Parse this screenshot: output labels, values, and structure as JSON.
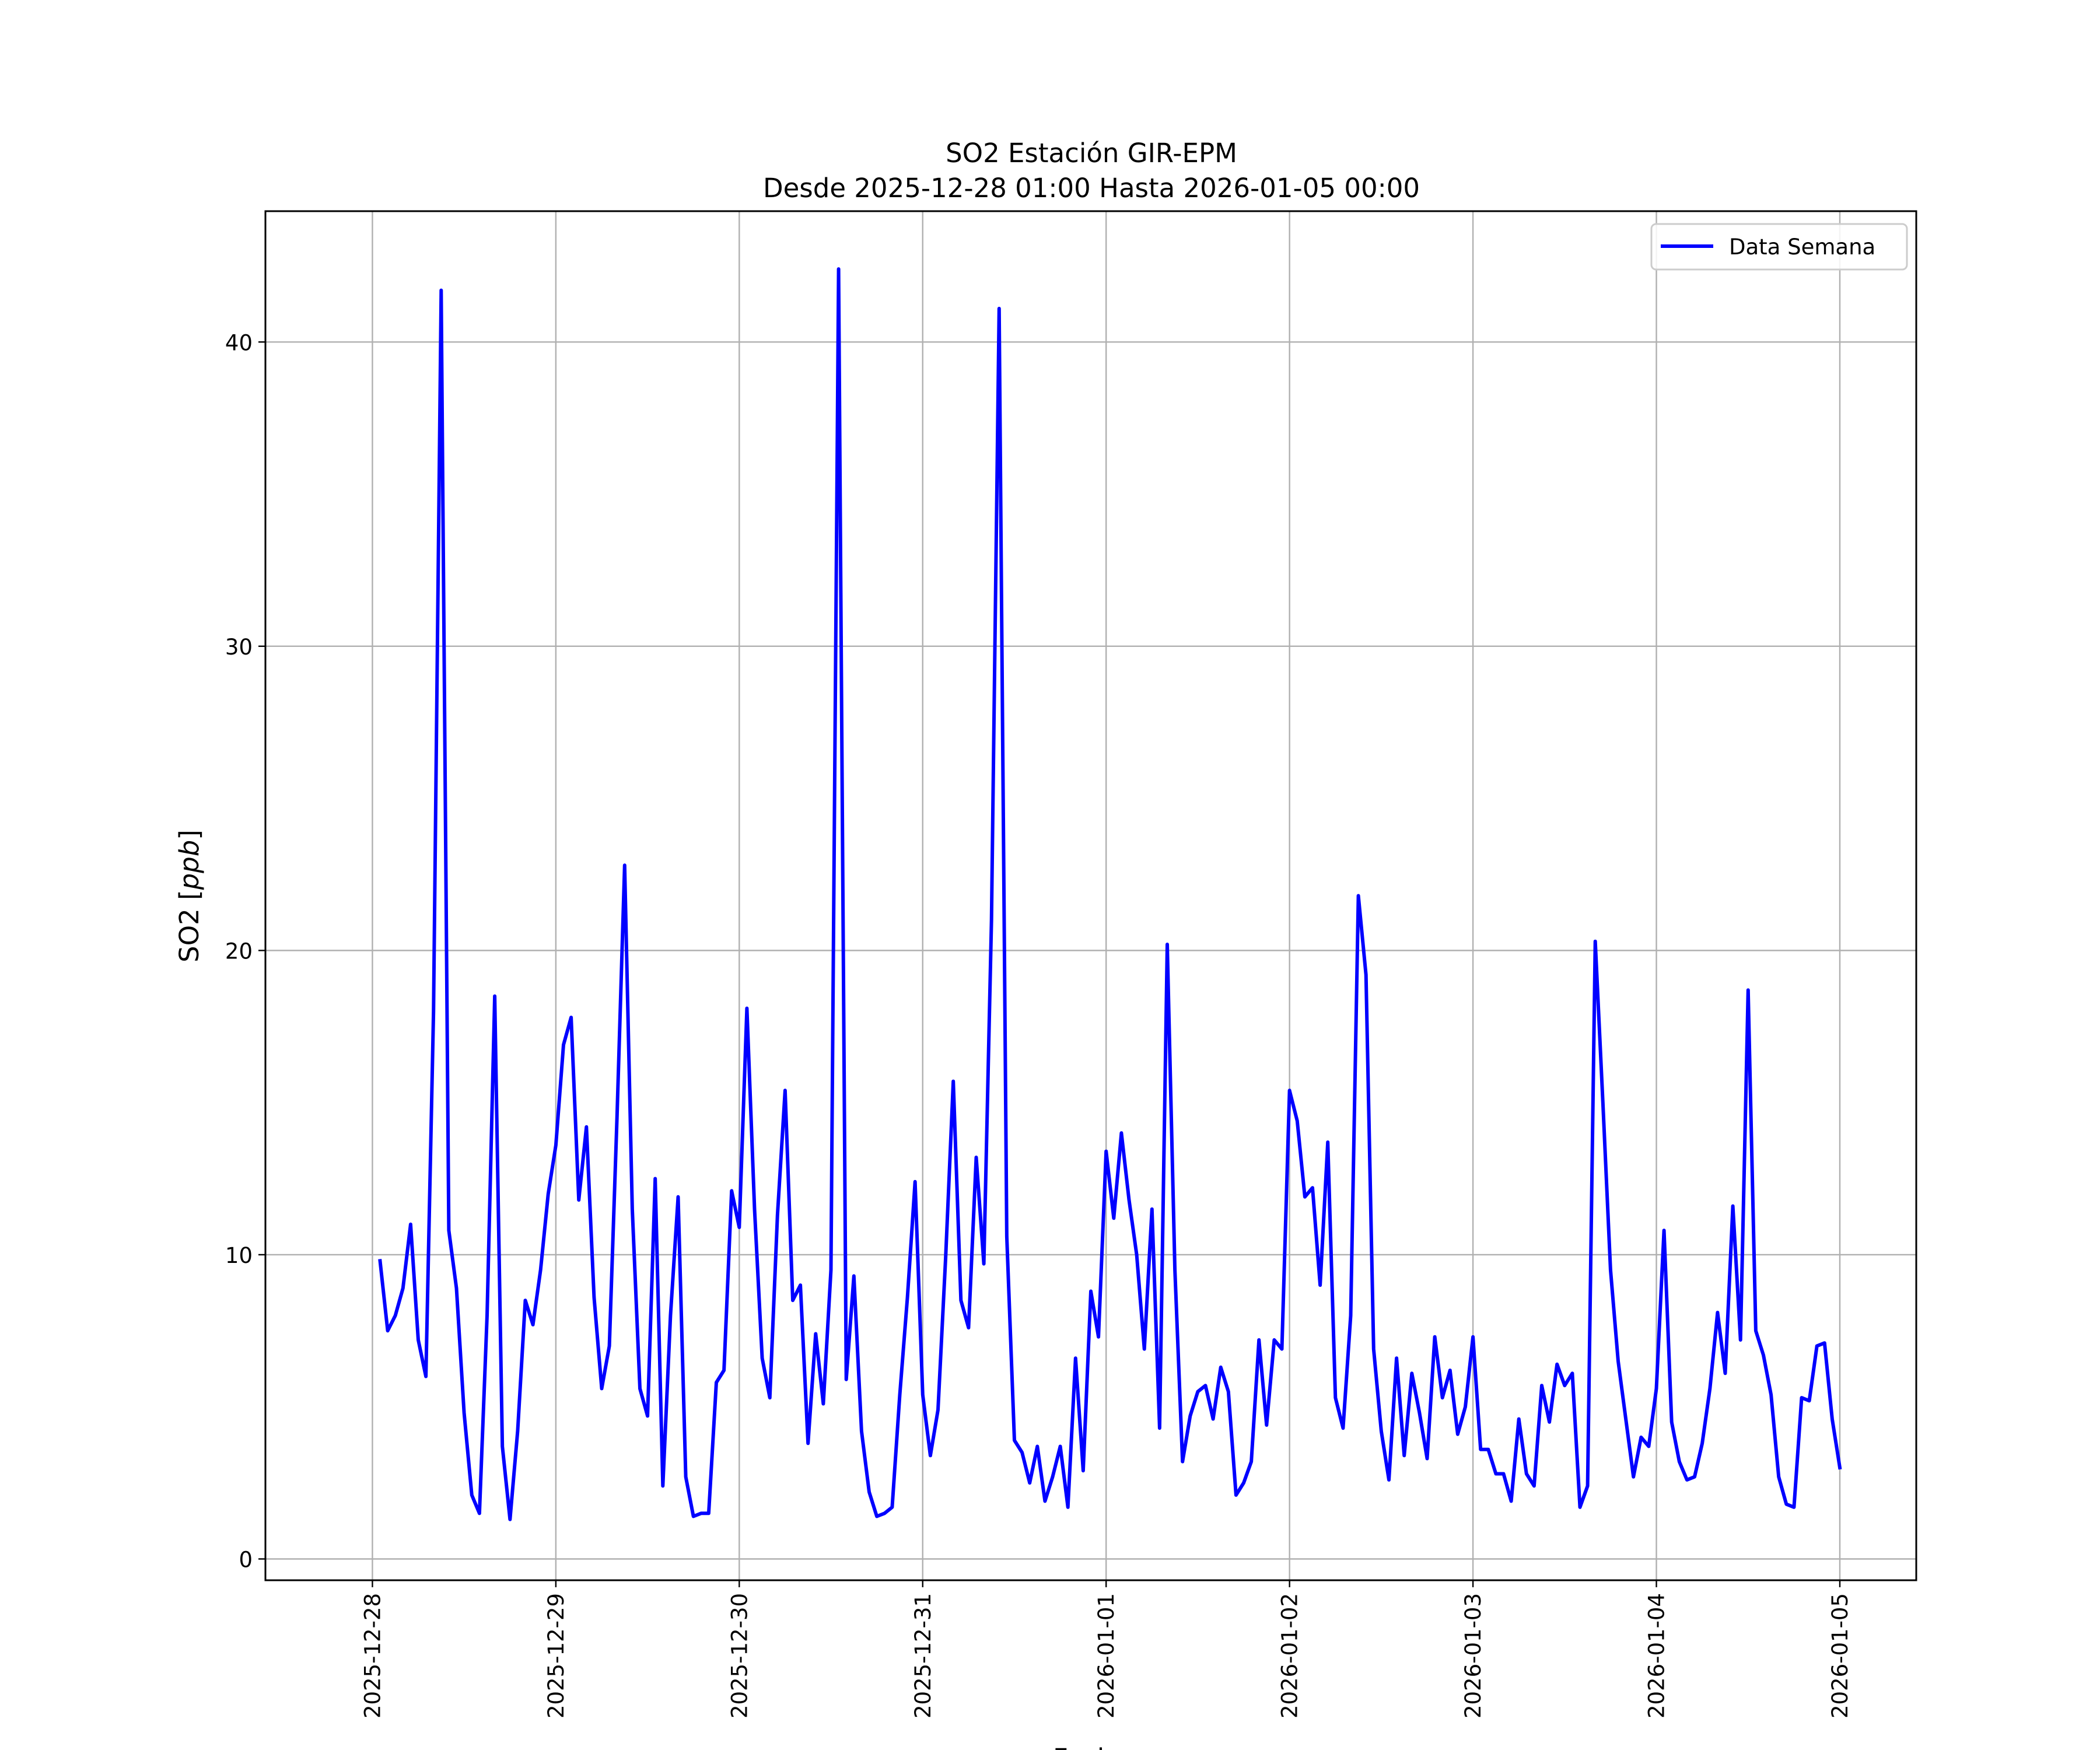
{
  "chart_data": {
    "type": "line",
    "title_line1": "SO2 Estación GIR-EPM",
    "title_line2": "Desde 2025-12-28 01:00 Hasta 2026-01-05 00:00",
    "xlabel": "Fecha",
    "ylabel": "SO2 [ppb]",
    "ylabel_prefix": "SO2 [",
    "ylabel_unit": "ppb",
    "ylabel_suffix": "]",
    "x_ticks": [
      "2025-12-28",
      "2025-12-29",
      "2025-12-30",
      "2025-12-31",
      "2026-01-01",
      "2026-01-02",
      "2026-01-03",
      "2026-01-04",
      "2026-01-05"
    ],
    "y_ticks": [
      0,
      10,
      20,
      30,
      40
    ],
    "ylim": [
      -0.7,
      44.3
    ],
    "xlim": [
      "2025-12-27 10:00",
      "2026-01-05 10:00"
    ],
    "grid": true,
    "legend_position": "upper right",
    "series": [
      {
        "name": "Data Semana",
        "color": "#0000ff",
        "x_start": "2025-12-28 01:00",
        "x_step": "1 hour",
        "y": [
          9.8,
          7.5,
          8.0,
          8.9,
          11.0,
          7.2,
          6.0,
          18.0,
          41.7,
          10.8,
          8.9,
          4.8,
          2.1,
          1.5,
          8.0,
          18.5,
          3.7,
          1.3,
          4.2,
          8.5,
          7.7,
          9.5,
          12.0,
          13.6,
          16.9,
          17.8,
          11.8,
          14.2,
          8.6,
          5.6,
          7.0,
          14.5,
          22.8,
          11.5,
          5.6,
          4.7,
          12.5,
          2.4,
          8.0,
          11.9,
          2.7,
          1.4,
          1.5,
          1.5,
          5.8,
          6.2,
          12.1,
          10.9,
          18.1,
          11.5,
          6.6,
          5.3,
          11.3,
          15.4,
          8.5,
          9.0,
          3.8,
          7.4,
          5.1,
          9.5,
          42.4,
          5.9,
          9.3,
          4.2,
          2.2,
          1.4,
          1.5,
          1.7,
          5.4,
          8.6,
          12.4,
          5.4,
          3.4,
          4.9,
          9.9,
          15.7,
          8.5,
          7.6,
          13.2,
          9.7,
          21.0,
          41.1,
          10.6,
          3.9,
          3.5,
          2.5,
          3.7,
          1.9,
          2.7,
          3.7,
          1.7,
          6.6,
          2.9,
          8.8,
          7.3,
          13.4,
          11.2,
          14.0,
          11.8,
          10.0,
          6.9,
          11.5,
          4.3,
          20.2,
          9.5,
          3.2,
          4.7,
          5.5,
          5.7,
          4.6,
          6.3,
          5.5,
          2.1,
          2.5,
          3.2,
          7.2,
          4.4,
          7.2,
          6.9,
          15.4,
          14.4,
          11.9,
          12.2,
          9.0,
          13.7,
          5.3,
          4.3,
          8.0,
          21.8,
          19.2,
          6.9,
          4.2,
          2.6,
          6.6,
          3.4,
          6.1,
          4.8,
          3.3,
          7.3,
          5.3,
          6.2,
          4.1,
          5.0,
          7.3,
          3.6,
          3.6,
          2.8,
          2.8,
          1.9,
          4.6,
          2.8,
          2.4,
          5.7,
          4.5,
          6.4,
          5.7,
          6.1,
          1.7,
          2.4,
          20.3,
          15.0,
          9.5,
          6.5,
          4.6,
          2.7,
          4.0,
          3.7,
          5.6,
          10.8,
          4.5,
          3.2,
          2.6,
          2.7,
          3.8,
          5.6,
          8.1,
          6.1,
          11.6,
          7.2,
          18.7,
          7.5,
          6.7,
          5.4,
          2.7,
          1.8,
          1.7,
          5.3,
          5.2,
          7.0,
          7.1,
          4.6,
          3.0
        ]
      }
    ]
  }
}
